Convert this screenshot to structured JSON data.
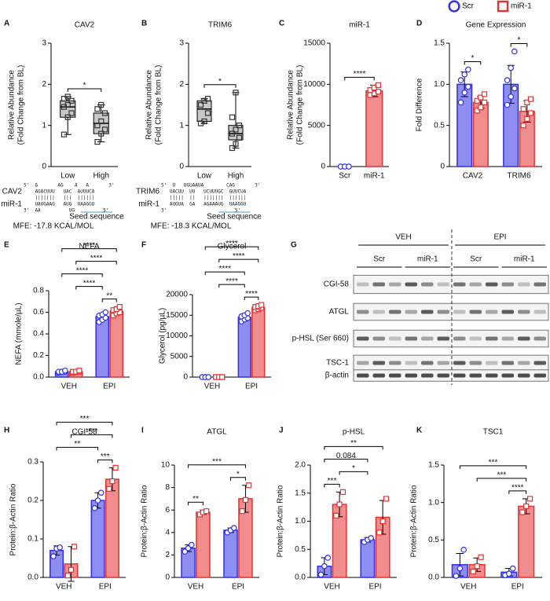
{
  "chart_data": [
    {
      "panel": "A",
      "type": "box",
      "title": "CAV2",
      "y_label": [
        "Relative Abundance",
        "(Fold Change from BL)"
      ],
      "categories": [
        "Low",
        "High"
      ],
      "color": "#c8c8c8",
      "boxes": [
        {
          "min": 0.78,
          "q1": 1.2,
          "median": 1.45,
          "q3": 1.6,
          "max": 1.7,
          "points": [
            0.78,
            1.2,
            1.3,
            1.45,
            1.5,
            1.6,
            1.65,
            1.7
          ]
        },
        {
          "min": 0.6,
          "q1": 0.8,
          "median": 1.05,
          "q3": 1.3,
          "max": 1.5,
          "points": [
            0.6,
            0.8,
            0.9,
            1.0,
            1.1,
            1.3,
            1.4,
            1.5
          ]
        }
      ],
      "ylim": [
        0,
        3
      ],
      "yticks": [
        0,
        1,
        2,
        3
      ],
      "significance": [
        {
          "label": "*",
          "from": 0,
          "to": 1
        }
      ]
    },
    {
      "panel": "B",
      "type": "box",
      "title": "TRIM6",
      "y_label": [
        "Relative Abundance",
        "(Fold Change from BL)"
      ],
      "categories": [
        "Low",
        "High"
      ],
      "color": "#c8c8c8",
      "boxes": [
        {
          "min": 1.05,
          "q1": 1.1,
          "median": 1.4,
          "q3": 1.6,
          "max": 1.65,
          "points": [
            1.05,
            1.1,
            1.3,
            1.5,
            1.6,
            1.65
          ]
        },
        {
          "min": 0.45,
          "q1": 0.65,
          "median": 0.8,
          "q3": 1.0,
          "max": 1.8,
          "points": [
            0.45,
            0.55,
            0.7,
            0.8,
            0.9,
            1.0,
            1.2,
            1.8
          ]
        }
      ],
      "ylim": [
        0,
        3
      ],
      "yticks": [
        0,
        1,
        2,
        3
      ],
      "significance": [
        {
          "label": "*",
          "from": 0,
          "to": 1
        }
      ]
    },
    {
      "panel": "C",
      "type": "bar",
      "title": "miR-1",
      "y_label": [
        "Relative Abundance",
        "(Fold Change from BL)"
      ],
      "categories": [
        "Scr",
        "miR-1"
      ],
      "values": [
        0,
        9200
      ],
      "errors": [
        0,
        700
      ],
      "points": [
        [
          0,
          0,
          0,
          0,
          0,
          0
        ],
        [
          8700,
          8900,
          9100,
          9300,
          9600,
          9900
        ]
      ],
      "colors": [
        "#3030e8",
        "#e83030"
      ],
      "markers": [
        "circle",
        "square"
      ],
      "ylim": [
        0,
        15000
      ],
      "yticks": [
        0,
        5000,
        10000,
        15000
      ],
      "significance": [
        {
          "label": "****",
          "from": 0,
          "to": 1
        }
      ]
    },
    {
      "panel": "D",
      "type": "bar",
      "title": "Gene Expression",
      "y_label": [
        "Fold Difference"
      ],
      "categories": [
        "CAV2",
        "TRIM6"
      ],
      "legend": "top-right",
      "series": [
        {
          "name": "Scr",
          "color": "#3030e8",
          "marker": "circle",
          "values": [
            1.0,
            1.0
          ],
          "errors": [
            0.15,
            0.23
          ],
          "points": [
            [
              0.78,
              0.9,
              0.97,
              1.05,
              1.12,
              1.18
            ],
            [
              0.75,
              0.85,
              0.95,
              1.05,
              1.2,
              1.4
            ]
          ]
        },
        {
          "name": "miR-1",
          "color": "#e83030",
          "marker": "square",
          "values": [
            0.78,
            0.67
          ],
          "errors": [
            0.07,
            0.13
          ],
          "points": [
            [
              0.68,
              0.72,
              0.78,
              0.8,
              0.84,
              0.88
            ],
            [
              0.5,
              0.58,
              0.65,
              0.7,
              0.78,
              0.82
            ]
          ]
        }
      ],
      "ylim": [
        0,
        1.5
      ],
      "yticks": [
        0,
        0.5,
        {
          "value": 1,
          "label": "1.0"
        },
        1.5
      ],
      "significance": [
        {
          "label": "*",
          "from": 0,
          "to": 1
        },
        {
          "label": "*",
          "from": 2,
          "to": 3
        }
      ]
    },
    {
      "panel": "E",
      "type": "bar",
      "title": "NEFA",
      "y_label": [
        "NEFA (mmole/µL)"
      ],
      "categories": [
        "VEH",
        "EPI"
      ],
      "series": [
        {
          "color": "#3030e8",
          "marker": "circle",
          "values": [
            0.05,
            0.56
          ],
          "errors": [
            0.01,
            0.03
          ],
          "points": [
            [
              0.04,
              0.05,
              0.05,
              0.05,
              0.05,
              0.06
            ],
            [
              0.51,
              0.53,
              0.55,
              0.57,
              0.58,
              0.6
            ]
          ]
        },
        {
          "color": "#e83030",
          "marker": "square",
          "values": [
            0.05,
            0.61
          ],
          "errors": [
            0.01,
            0.03
          ],
          "points": [
            [
              0.04,
              0.05,
              0.05,
              0.05,
              0.05,
              0.06
            ],
            [
              0.57,
              0.59,
              0.6,
              0.62,
              0.63,
              0.65
            ]
          ]
        }
      ],
      "ylim": [
        0,
        0.8
      ],
      "yticks": [
        {
          "value": 0,
          "label": "0.0"
        },
        0.2,
        0.4,
        0.6,
        0.8
      ],
      "significance": [
        {
          "label": "**",
          "from": 2,
          "to": 3
        },
        {
          "label": "****",
          "from": 1,
          "to": 2
        },
        {
          "label": "****",
          "from": 0,
          "to": 2
        },
        {
          "label": "****",
          "from": 1,
          "to": 3
        },
        {
          "label": "****",
          "from": 0,
          "to": 3
        }
      ]
    },
    {
      "panel": "F",
      "type": "bar",
      "title": "Glycerol",
      "y_label": [
        "Glycerol (pg/µL)"
      ],
      "categories": [
        "VEH",
        "EPI"
      ],
      "series": [
        {
          "color": "#3030e8",
          "marker": "circle",
          "values": [
            0,
            14500
          ],
          "errors": [
            0,
            900
          ],
          "points": [
            [
              0,
              0,
              0,
              0,
              0,
              0
            ],
            [
              13500,
              14000,
              14300,
              14700,
              15000,
              15500
            ]
          ]
        },
        {
          "color": "#e83030",
          "marker": "square",
          "values": [
            0,
            16900
          ],
          "errors": [
            0,
            600
          ],
          "points": [
            [
              0,
              0,
              0,
              0,
              0,
              0
            ],
            [
              16200,
              16500,
              16800,
              17000,
              17200,
              17500
            ]
          ]
        }
      ],
      "ylim": [
        0,
        20000
      ],
      "yticks": [
        0,
        5000,
        10000,
        15000,
        20000
      ],
      "significance": [
        {
          "label": "****",
          "from": 2,
          "to": 3
        },
        {
          "label": "****",
          "from": 1,
          "to": 2
        },
        {
          "label": "****",
          "from": 0,
          "to": 2
        },
        {
          "label": "****",
          "from": 1,
          "to": 3
        },
        {
          "label": "****",
          "from": 0,
          "to": 3
        }
      ]
    },
    {
      "panel": "H",
      "type": "bar",
      "title": "CGI-58",
      "y_label": [
        "Protein:β-Actin Ratio"
      ],
      "categories": [
        "VEH",
        "EPI"
      ],
      "series": [
        {
          "color": "#3030e8",
          "marker": "circle",
          "values": [
            0.07,
            0.2
          ],
          "errors": [
            0.012,
            0.02
          ],
          "points": [
            [
              0.055,
              0.075,
              0.078
            ],
            [
              0.18,
              0.2,
              0.22
            ]
          ]
        },
        {
          "color": "#e83030",
          "marker": "square",
          "values": [
            0.035,
            0.255
          ],
          "errors": [
            0.045,
            0.03
          ],
          "points": [
            [
              0.005,
              0.02,
              0.08
            ],
            [
              0.23,
              0.25,
              0.285
            ]
          ]
        }
      ],
      "ylim": [
        0,
        0.3
      ],
      "yticks": [
        {
          "value": 0,
          "label": "0.0"
        },
        0.1,
        0.2,
        0.3
      ],
      "significance": [
        {
          "label": "***",
          "from": 2,
          "to": 3
        },
        {
          "label": "**",
          "from": 0,
          "to": 2
        },
        {
          "label": "****",
          "from": 1,
          "to": 3
        },
        {
          "label": "***",
          "from": 0,
          "to": 3
        }
      ]
    },
    {
      "panel": "I",
      "type": "bar",
      "title": "ATGL",
      "y_label": [
        "Protein:β-Actin Ratio"
      ],
      "categories": [
        "VEH",
        "EPI"
      ],
      "series": [
        {
          "color": "#3030e8",
          "marker": "circle",
          "values": [
            2.6,
            4.2
          ],
          "errors": [
            0.3,
            0.2
          ],
          "points": [
            [
              2.3,
              2.6,
              2.9
            ],
            [
              4.0,
              4.2,
              4.4
            ]
          ]
        },
        {
          "color": "#e83030",
          "marker": "square",
          "values": [
            5.8,
            7.0
          ],
          "errors": [
            0.2,
            1.2
          ],
          "points": [
            [
              5.6,
              5.8,
              5.9
            ],
            [
              5.9,
              6.9,
              8.2
            ]
          ]
        }
      ],
      "ylim": [
        0,
        10
      ],
      "yticks": [
        0,
        2,
        4,
        6,
        8,
        10
      ],
      "significance": [
        {
          "label": "**",
          "from": 0,
          "to": 1
        },
        {
          "label": "*",
          "from": 2,
          "to": 3
        },
        {
          "label": "***",
          "from": 0,
          "to": 3
        }
      ]
    },
    {
      "panel": "J",
      "type": "bar",
      "title": "p-HSL",
      "y_label": [
        "Protein:β-Actin Ratio"
      ],
      "categories": [
        "VEH",
        "EPI"
      ],
      "series": [
        {
          "color": "#3030e8",
          "marker": "circle",
          "values": [
            0.2,
            0.67
          ],
          "errors": [
            0.15,
            0.04
          ],
          "points": [
            [
              0.05,
              0.2,
              0.35
            ],
            [
              0.63,
              0.67,
              0.7
            ]
          ]
        },
        {
          "color": "#e83030",
          "marker": "square",
          "values": [
            1.3,
            1.07
          ],
          "errors": [
            0.22,
            0.3
          ],
          "points": [
            [
              1.1,
              1.3,
              1.52
            ],
            [
              0.8,
              1.0,
              1.4
            ]
          ]
        }
      ],
      "ylim": [
        0,
        2
      ],
      "yticks": [
        {
          "value": 0,
          "label": "0.0"
        },
        0.5,
        {
          "value": 1,
          "label": "1.0"
        },
        1.5,
        {
          "value": 2,
          "label": "2.0"
        }
      ],
      "significance": [
        {
          "label": "***",
          "from": 0,
          "to": 1
        },
        {
          "label": "*",
          "from": 1,
          "to": 2
        },
        {
          "label": "0.084",
          "from": 0,
          "to": 2
        },
        {
          "label": "**",
          "from": 0,
          "to": 3
        }
      ]
    },
    {
      "panel": "K",
      "type": "bar",
      "title": "TSC1",
      "y_label": [
        "Protein:β-Actin Ratio"
      ],
      "categories": [
        "VEH",
        "EPI"
      ],
      "series": [
        {
          "color": "#3030e8",
          "marker": "circle",
          "values": [
            0.17,
            0.07
          ],
          "errors": [
            0.15,
            0.05
          ],
          "points": [
            [
              0.02,
              0.12,
              0.37
            ],
            [
              0.03,
              0.05,
              0.12
            ]
          ]
        },
        {
          "color": "#e83030",
          "marker": "square",
          "values": [
            0.17,
            0.95
          ],
          "errors": [
            0.09,
            0.1
          ],
          "points": [
            [
              0.08,
              0.15,
              0.27
            ],
            [
              0.87,
              0.95,
              1.05
            ]
          ]
        }
      ],
      "ylim": [
        0,
        1.5
      ],
      "yticks": [
        {
          "value": 0,
          "label": "0.0"
        },
        0.5,
        {
          "value": 1,
          "label": "1.0"
        },
        1.5
      ],
      "significance": [
        {
          "label": "****",
          "from": 2,
          "to": 3
        },
        {
          "label": "***",
          "from": 1,
          "to": 3
        },
        {
          "label": "***",
          "from": 0,
          "to": 3
        }
      ]
    }
  ],
  "sequences": [
    {
      "gene": "CAV2",
      "mirna": "miR-1",
      "lines": [
        "5'  G       AG    A   A       3'",
        "    AUACUUU   UAC  AUUUCA",
        "    |||||||   |||  ||||||",
        "    UAUGAAG   AUG  UAAGGU",
        "3'  AA          UG          5'"
      ],
      "seed": "Seed sequence",
      "mfe": "MFE: -17.8 KCAL/MOL"
    },
    {
      "gene": "TRIM6",
      "mirna": "miR-1",
      "lines": [
        "5'  U   UGUAAUA        CAG       3'",
        "   UACUU  UU   UCUUUGC  GUUCUA",
        "   |||||  ||   |||||||  ||||||",
        "   AUGUA  GA   AGAAAUG  UAAGGU",
        "3'                        5'"
      ],
      "seed": "Seed sequence",
      "mfe": "MFE: -18.3 KCAL/MOL"
    }
  ],
  "blot": {
    "panel": "G",
    "treatments": [
      "VEH",
      "EPI"
    ],
    "groups": [
      "Scr",
      "miR-1",
      "Scr",
      "miR-1"
    ],
    "rows": [
      "CGI-58",
      "ATGL",
      "p-HSL (Ser 660)",
      "TSC-1",
      "β-actin"
    ]
  }
}
